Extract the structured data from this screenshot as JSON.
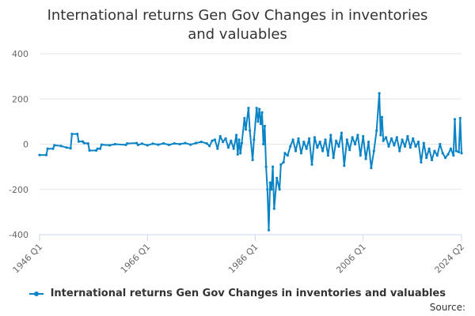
{
  "title": "International returns Gen Gov Changes in inventories and valuables",
  "source_label": "Source:",
  "colors": {
    "series": "#0b84c6",
    "grid": "#e6e6e6",
    "axis": "#ccd6eb"
  },
  "chart_data": {
    "type": "line",
    "title": "International returns Gen Gov Changes in inventories and valuables",
    "xlabel": "",
    "ylabel": "",
    "ylim": [
      -400,
      400
    ],
    "yticks": [
      400,
      200,
      0,
      -200,
      -400
    ],
    "xticks": [
      "1946 Q1",
      "1966 Q1",
      "1986 Q1",
      "2006 Q1",
      "2024 Q2"
    ],
    "x_range": [
      "1946 Q1",
      "2024 Q2"
    ],
    "grid": true,
    "legend_position": "bottom",
    "series": [
      {
        "name": "International returns Gen Gov Changes in inventories and valuables",
        "points": [
          [
            "1946 Q1",
            -48
          ],
          [
            "1947 Q2",
            -48
          ],
          [
            "1947 Q3",
            -20
          ],
          [
            "1948 Q3",
            -20
          ],
          [
            "1948 Q4",
            -5
          ],
          [
            "1950 Q1",
            -8
          ],
          [
            "1951 Q1",
            -15
          ],
          [
            "1951 Q4",
            -18
          ],
          [
            "1952 Q1",
            45
          ],
          [
            "1953 Q1",
            45
          ],
          [
            "1953 Q2",
            12
          ],
          [
            "1954 Q1",
            12
          ],
          [
            "1954 Q2",
            5
          ],
          [
            "1955 Q1",
            3
          ],
          [
            "1955 Q2",
            -28
          ],
          [
            "1956 Q3",
            -28
          ],
          [
            "1956 Q4",
            -20
          ],
          [
            "1957 Q2",
            -20
          ],
          [
            "1957 Q3",
            -2
          ],
          [
            "1959 Q1",
            -5
          ],
          [
            "1960 Q1",
            0
          ],
          [
            "1962 Q1",
            -3
          ],
          [
            "1962 Q2",
            3
          ],
          [
            "1964 Q1",
            5
          ],
          [
            "1964 Q2",
            -3
          ],
          [
            "1965 Q1",
            2
          ],
          [
            "1966 Q1",
            -5
          ],
          [
            "1967 Q1",
            2
          ],
          [
            "1968 Q1",
            -2
          ],
          [
            "1969 Q1",
            3
          ],
          [
            "1970 Q1",
            -3
          ],
          [
            "1971 Q1",
            3
          ],
          [
            "1972 Q1",
            0
          ],
          [
            "1973 Q1",
            5
          ],
          [
            "1974 Q1",
            -2
          ],
          [
            "1975 Q1",
            5
          ],
          [
            "1976 Q1",
            10
          ],
          [
            "1977 Q1",
            3
          ],
          [
            "1977 Q3",
            -8
          ],
          [
            "1978 Q1",
            15
          ],
          [
            "1978 Q3",
            20
          ],
          [
            "1979 Q1",
            -20
          ],
          [
            "1979 Q3",
            35
          ],
          [
            "1980 Q1",
            10
          ],
          [
            "1980 Q3",
            25
          ],
          [
            "1981 Q1",
            -15
          ],
          [
            "1981 Q3",
            15
          ],
          [
            "1982 Q1",
            -20
          ],
          [
            "1982 Q3",
            40
          ],
          [
            "1982 Q4",
            -45
          ],
          [
            "1983 Q1",
            20
          ],
          [
            "1983 Q2",
            -40
          ],
          [
            "1983 Q3",
            5
          ],
          [
            "1984 Q1",
            115
          ],
          [
            "1984 Q2",
            65
          ],
          [
            "1984 Q4",
            160
          ],
          [
            "1985 Q1",
            60
          ],
          [
            "1985 Q3",
            -70
          ],
          [
            "1985 Q4",
            20
          ],
          [
            "1986 Q2",
            160
          ],
          [
            "1986 Q3",
            100
          ],
          [
            "1986 Q4",
            155
          ],
          [
            "1987 Q1",
            90
          ],
          [
            "1987 Q2",
            140
          ],
          [
            "1987 Q3",
            0
          ],
          [
            "1987 Q4",
            80
          ],
          [
            "1988 Q1",
            -100
          ],
          [
            "1988 Q2",
            -200
          ],
          [
            "1988 Q3",
            -380
          ],
          [
            "1988 Q4",
            -170
          ],
          [
            "1989 Q1",
            -200
          ],
          [
            "1989 Q2",
            -100
          ],
          [
            "1989 Q3",
            -285
          ],
          [
            "1990 Q1",
            -150
          ],
          [
            "1990 Q3",
            -200
          ],
          [
            "1990 Q4",
            -90
          ],
          [
            "1991 Q2",
            -80
          ],
          [
            "1991 Q3",
            -40
          ],
          [
            "1992 Q1",
            -50
          ],
          [
            "1992 Q3",
            -10
          ],
          [
            "1993 Q1",
            20
          ],
          [
            "1993 Q3",
            -30
          ],
          [
            "1994 Q1",
            25
          ],
          [
            "1994 Q3",
            -40
          ],
          [
            "1995 Q1",
            10
          ],
          [
            "1995 Q3",
            -20
          ],
          [
            "1996 Q1",
            25
          ],
          [
            "1996 Q3",
            -90
          ],
          [
            "1997 Q1",
            30
          ],
          [
            "1997 Q3",
            -15
          ],
          [
            "1998 Q1",
            10
          ],
          [
            "1998 Q3",
            -30
          ],
          [
            "1999 Q1",
            20
          ],
          [
            "1999 Q3",
            -50
          ],
          [
            "2000 Q1",
            40
          ],
          [
            "2000 Q3",
            -60
          ],
          [
            "2001 Q1",
            15
          ],
          [
            "2001 Q3",
            -10
          ],
          [
            "2002 Q1",
            50
          ],
          [
            "2002 Q3",
            -95
          ],
          [
            "2003 Q1",
            20
          ],
          [
            "2003 Q3",
            -25
          ],
          [
            "2004 Q1",
            30
          ],
          [
            "2004 Q3",
            0
          ],
          [
            "2005 Q1",
            40
          ],
          [
            "2005 Q3",
            -50
          ],
          [
            "2006 Q1",
            35
          ],
          [
            "2006 Q3",
            -65
          ],
          [
            "2007 Q1",
            10
          ],
          [
            "2007 Q3",
            -105
          ],
          [
            "2008 Q1",
            -30
          ],
          [
            "2008 Q3",
            60
          ],
          [
            "2009 Q1",
            225
          ],
          [
            "2009 Q2",
            40
          ],
          [
            "2009 Q3",
            120
          ],
          [
            "2009 Q4",
            15
          ],
          [
            "2010 Q2",
            30
          ],
          [
            "2010 Q4",
            -10
          ],
          [
            "2011 Q2",
            25
          ],
          [
            "2011 Q4",
            -5
          ],
          [
            "2012 Q2",
            30
          ],
          [
            "2012 Q4",
            -30
          ],
          [
            "2013 Q2",
            20
          ],
          [
            "2013 Q4",
            -10
          ],
          [
            "2014 Q2",
            35
          ],
          [
            "2014 Q4",
            -15
          ],
          [
            "2015 Q2",
            25
          ],
          [
            "2015 Q4",
            -10
          ],
          [
            "2016 Q2",
            10
          ],
          [
            "2016 Q4",
            -80
          ],
          [
            "2017 Q2",
            5
          ],
          [
            "2017 Q4",
            -60
          ],
          [
            "2018 Q2",
            -20
          ],
          [
            "2018 Q4",
            -70
          ],
          [
            "2019 Q2",
            -30
          ],
          [
            "2019 Q4",
            -50
          ],
          [
            "2020 Q2",
            0
          ],
          [
            "2020 Q4",
            -40
          ],
          [
            "2021 Q2",
            -60
          ],
          [
            "2021 Q4",
            -45
          ],
          [
            "2022 Q2",
            -20
          ],
          [
            "2022 Q4",
            -50
          ],
          [
            "2023 Q1",
            110
          ],
          [
            "2023 Q2",
            -30
          ],
          [
            "2023 Q4",
            -35
          ],
          [
            "2024 Q1",
            115
          ],
          [
            "2024 Q2",
            -40
          ]
        ]
      }
    ]
  }
}
